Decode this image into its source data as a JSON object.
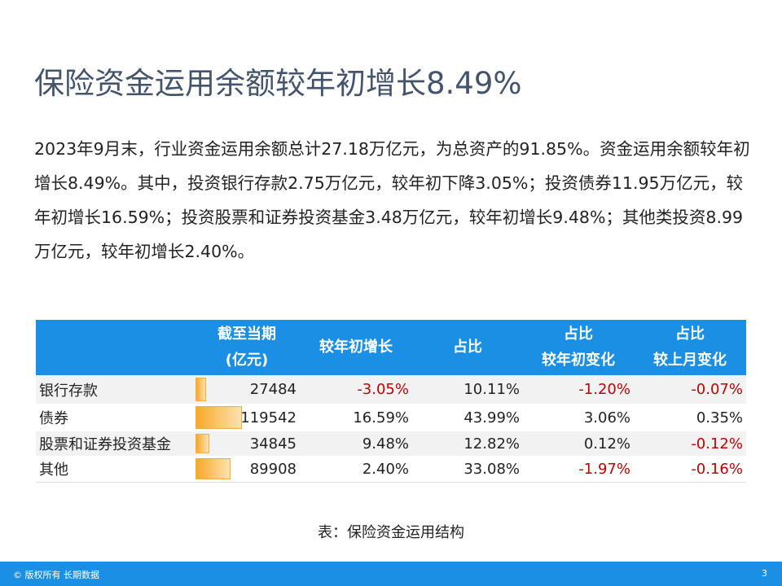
{
  "title": "保险资金运用余额较年初增长8.49%",
  "paragraph": "2023年9月末，行业资金运用余额总计27.18万亿元，为总资产的91.85%。资金运用余额较年初增长8.49%。其中，投资银行存款2.75万亿元，较年初下降3.05%；投资债券11.95万亿元，较年初增长16.59%；投资股票和证券投资基金3.48万亿元，较年初增长9.48%；其他类投资8.99万亿元，较年初增长2.40%。",
  "table": {
    "header": [
      [
        "截至当期",
        "(亿元)"
      ],
      [
        "较年初增长"
      ],
      [
        "占比"
      ],
      [
        "占比",
        "较年初变化"
      ],
      [
        "占比",
        "较上月变化"
      ]
    ],
    "rows": [
      [
        "银行存款",
        27484,
        "-3.05%",
        "10.11%",
        "-1.20%",
        "-0.07%"
      ],
      [
        "债券",
        119542,
        "16.59%",
        "43.99%",
        "3.06%",
        "0.35%"
      ],
      [
        "股票和证券投资基金",
        34845,
        "9.48%",
        "12.82%",
        "0.12%",
        "-0.12%"
      ],
      [
        "其他",
        89908,
        "2.40%",
        "33.08%",
        "-1.97%",
        "-0.16%"
      ]
    ]
  },
  "caption": "表：保险资金运用结构",
  "footer": {
    "copyright": "© 版权所有 长期数据",
    "page": "3"
  }
}
